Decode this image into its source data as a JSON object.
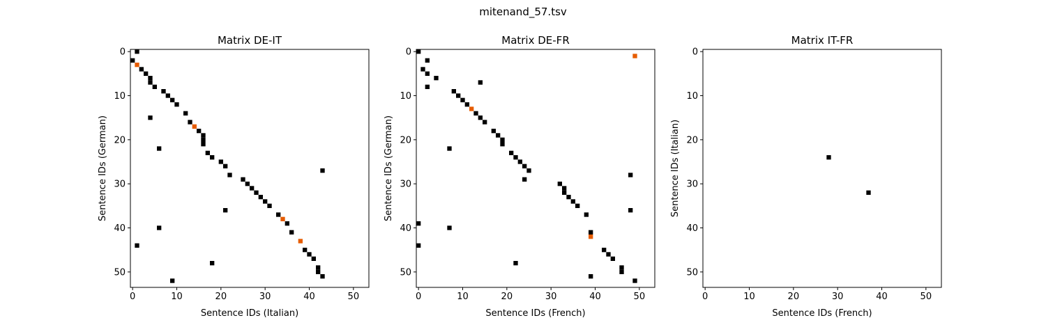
{
  "figure": {
    "suptitle": "mitenand_57.tsv"
  },
  "colors": {
    "match": "#000000",
    "highlight": "#e65c00",
    "background": "#ffffff"
  },
  "chart_data": [
    {
      "type": "heatmap",
      "title": "Matrix DE-IT",
      "xlabel": "Sentence IDs (Italian)",
      "ylabel": "Sentence IDs (German)",
      "xlim": [
        -0.5,
        53.5
      ],
      "ylim": [
        53.5,
        -0.5
      ],
      "xticks": [
        0,
        10,
        20,
        30,
        40,
        50
      ],
      "yticks": [
        0,
        10,
        20,
        30,
        40,
        50
      ],
      "grid": false,
      "y_inverted": true,
      "points": [
        [
          1,
          0
        ],
        [
          0,
          2
        ],
        [
          2,
          4
        ],
        [
          3,
          5
        ],
        [
          4,
          6
        ],
        [
          4,
          7
        ],
        [
          5,
          8
        ],
        [
          7,
          9
        ],
        [
          8,
          10
        ],
        [
          9,
          11
        ],
        [
          10,
          12
        ],
        [
          12,
          14
        ],
        [
          13,
          16
        ],
        [
          15,
          18
        ],
        [
          16,
          19
        ],
        [
          16,
          20
        ],
        [
          16,
          21
        ],
        [
          17,
          23
        ],
        [
          18,
          24
        ],
        [
          20,
          25
        ],
        [
          21,
          26
        ],
        [
          22,
          28
        ],
        [
          25,
          29
        ],
        [
          26,
          30
        ],
        [
          27,
          31
        ],
        [
          28,
          32
        ],
        [
          29,
          33
        ],
        [
          30,
          34
        ],
        [
          31,
          35
        ],
        [
          33,
          37
        ],
        [
          35,
          39
        ],
        [
          36,
          41
        ],
        [
          39,
          45
        ],
        [
          40,
          46
        ],
        [
          41,
          47
        ],
        [
          42,
          49
        ],
        [
          42,
          50
        ],
        [
          43,
          51
        ],
        [
          4,
          15
        ],
        [
          6,
          22
        ],
        [
          43,
          27
        ],
        [
          21,
          36
        ],
        [
          6,
          40
        ],
        [
          1,
          44
        ],
        [
          18,
          48
        ],
        [
          9,
          52
        ]
      ],
      "highlight_points": [
        [
          1,
          3
        ],
        [
          14,
          17
        ],
        [
          34,
          38
        ],
        [
          38,
          43
        ]
      ]
    },
    {
      "type": "heatmap",
      "title": "Matrix DE-FR",
      "xlabel": "Sentence IDs (French)",
      "ylabel": "Sentence IDs (German)",
      "xlim": [
        -0.5,
        53.5
      ],
      "ylim": [
        53.5,
        -0.5
      ],
      "xticks": [
        0,
        10,
        20,
        30,
        40,
        50
      ],
      "yticks": [
        0,
        10,
        20,
        30,
        40,
        50
      ],
      "grid": false,
      "y_inverted": true,
      "points": [
        [
          0,
          0
        ],
        [
          2,
          2
        ],
        [
          1,
          4
        ],
        [
          2,
          5
        ],
        [
          4,
          6
        ],
        [
          14,
          7
        ],
        [
          2,
          8
        ],
        [
          8,
          9
        ],
        [
          9,
          10
        ],
        [
          10,
          11
        ],
        [
          11,
          12
        ],
        [
          13,
          14
        ],
        [
          14,
          15
        ],
        [
          15,
          16
        ],
        [
          17,
          18
        ],
        [
          18,
          19
        ],
        [
          19,
          20
        ],
        [
          19,
          21
        ],
        [
          7,
          22
        ],
        [
          21,
          23
        ],
        [
          22,
          24
        ],
        [
          23,
          25
        ],
        [
          24,
          26
        ],
        [
          25,
          27
        ],
        [
          48,
          28
        ],
        [
          24,
          29
        ],
        [
          32,
          30
        ],
        [
          33,
          31
        ],
        [
          33,
          32
        ],
        [
          34,
          33
        ],
        [
          35,
          34
        ],
        [
          36,
          35
        ],
        [
          48,
          36
        ],
        [
          38,
          37
        ],
        [
          0,
          39
        ],
        [
          7,
          40
        ],
        [
          39,
          41
        ],
        [
          0,
          44
        ],
        [
          42,
          45
        ],
        [
          43,
          46
        ],
        [
          44,
          47
        ],
        [
          22,
          48
        ],
        [
          46,
          49
        ],
        [
          46,
          50
        ],
        [
          39,
          51
        ],
        [
          49,
          52
        ]
      ],
      "highlight_points": [
        [
          49,
          1
        ],
        [
          12,
          13
        ],
        [
          39,
          42
        ]
      ]
    },
    {
      "type": "heatmap",
      "title": "Matrix IT-FR",
      "xlabel": "Sentence IDs (French)",
      "ylabel": "Sentence IDs (Italian)",
      "xlim": [
        -0.5,
        53.5
      ],
      "ylim": [
        53.5,
        -0.5
      ],
      "xticks": [
        0,
        10,
        20,
        30,
        40,
        50
      ],
      "yticks": [
        0,
        10,
        20,
        30,
        40,
        50
      ],
      "grid": false,
      "y_inverted": true,
      "points": [
        [
          28,
          24
        ],
        [
          37,
          32
        ]
      ],
      "highlight_points": []
    }
  ]
}
